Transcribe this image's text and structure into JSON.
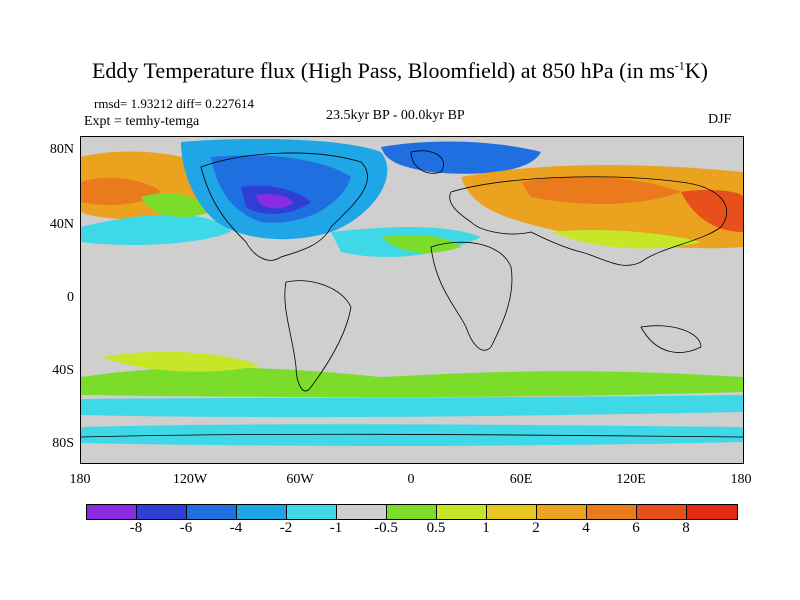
{
  "title": {
    "main": "Eddy Temperature flux (High Pass, Bloomfield) at 850 hPa (in ms",
    "sup": "-1",
    "tail": "K)"
  },
  "stats": "rmsd= 1.93212 diff= 0.227614",
  "expt": "Expt = temhy-temga",
  "period": "23.5kyr BP - 00.0kyr BP",
  "season": "DJF",
  "y_ticks": [
    "80N",
    "40N",
    "0",
    "40S",
    "80S"
  ],
  "x_ticks": [
    "180",
    "120W",
    "60W",
    "0",
    "60E",
    "120E",
    "180"
  ],
  "colorbar": {
    "colors": [
      "#8a2be2",
      "#2f3fd6",
      "#1f6fe0",
      "#1fa6e6",
      "#3fd8e6",
      "#cfcfcf",
      "#7cdc2a",
      "#c8e628",
      "#e6c81f",
      "#eba21f",
      "#ea7a1c",
      "#e8501b",
      "#e02a14"
    ],
    "labels": [
      "-8",
      "-6",
      "-4",
      "-2",
      "-1",
      "-0.5",
      "0.5",
      "1",
      "2",
      "4",
      "6",
      "8"
    ]
  }
}
